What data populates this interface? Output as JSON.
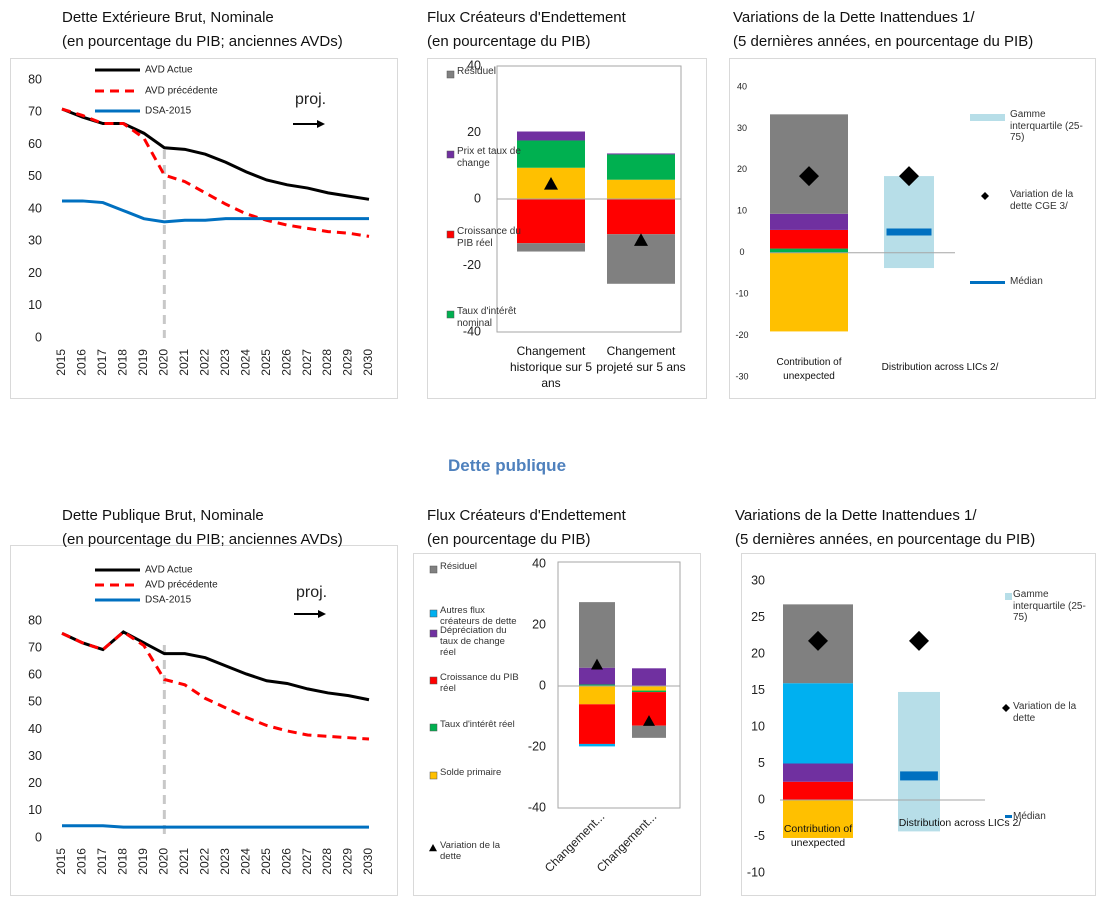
{
  "section_title": "Dette publique",
  "chart_data": [
    {
      "type": "line",
      "title": "Dette Extérieure Brut, Nominale",
      "subtitle": "(en pourcentage du PIB; anciennes AVDs)",
      "categories": [
        "2015",
        "2016",
        "2017",
        "2018",
        "2019",
        "2020",
        "2021",
        "2022",
        "2023",
        "2024",
        "2025",
        "2026",
        "2027",
        "2028",
        "2029",
        "2030"
      ],
      "ylim": [
        0,
        80
      ],
      "yticks": [
        0,
        10,
        20,
        30,
        40,
        50,
        60,
        70,
        80
      ],
      "annotation": "proj.",
      "series": [
        {
          "name": "AVD Actue",
          "color": "#000000",
          "values": [
            71,
            68.5,
            66.5,
            66.5,
            63.5,
            59,
            58.5,
            57,
            54.5,
            51.5,
            49,
            47.5,
            46.5,
            45,
            44,
            43
          ]
        },
        {
          "name": "AVD précédente",
          "color": "#ff0000",
          "dashed": true,
          "values": [
            71,
            69,
            66.5,
            66.5,
            62,
            50.5,
            48.5,
            45,
            41.5,
            38.5,
            36.5,
            35,
            34,
            33,
            32.5,
            31.5
          ]
        },
        {
          "name": "DSA-2015",
          "color": "#0070c0",
          "values": [
            42.5,
            42.5,
            42,
            39.5,
            37,
            36,
            36.5,
            36.5,
            37,
            37,
            37,
            37,
            37,
            37,
            37,
            37
          ]
        }
      ]
    },
    {
      "type": "bar",
      "stacked": true,
      "title": "Flux Créateurs d'Endettement",
      "subtitle": "(en pourcentage du PIB)",
      "categories": [
        "Changement historique sur 5 ans",
        "Changement projeté sur 5 ans"
      ],
      "ylim": [
        -40,
        40
      ],
      "yticks": [
        -40,
        -20,
        0,
        20,
        40
      ],
      "series": [
        {
          "color": "#ffc000",
          "values": [
            9.4,
            5.8
          ]
        },
        {
          "name": "Taux d'intérêt nominal",
          "color": "#00b050",
          "values": [
            8.2,
            7.6
          ]
        },
        {
          "name": "Prix et taux de change",
          "color": "#7030a0",
          "values": [
            2.7,
            0.3
          ]
        },
        {
          "name": "Croissance du PIB réel",
          "color": "#ff0000",
          "values": [
            -13.3,
            -10.6
          ]
        },
        {
          "name": "Résiduel",
          "color": "#808080",
          "values": [
            -2.5,
            -14.9
          ]
        }
      ],
      "markers": {
        "shape": "triangle",
        "color": "#000000",
        "values": [
          4.5,
          -12.4
        ]
      }
    },
    {
      "type": "bar",
      "stacked": true,
      "title": "Variations de la Dette Inattendues 1/",
      "subtitle": "(5 dernières années, en pourcentage du PIB)",
      "categories": [
        "Contribution of unexpected",
        "Distribution across LICs 2/"
      ],
      "ylim": [
        -30,
        40
      ],
      "yticks": [
        -30,
        -20,
        -10,
        0,
        10,
        20,
        30,
        40
      ],
      "series": [
        {
          "color": "#00b050",
          "values": [
            1,
            null
          ]
        },
        {
          "color": "#ff0000",
          "values": [
            4.5,
            null
          ]
        },
        {
          "color": "#7030a0",
          "values": [
            3.9,
            null
          ]
        },
        {
          "color": "#808080",
          "values": [
            24,
            null
          ]
        },
        {
          "color": "#ffc000",
          "values": [
            -19,
            null
          ]
        }
      ],
      "range": {
        "name": "Gamme interquartile (25-75)",
        "color": "#b7dee8",
        "low": [
          null,
          -3.7
        ],
        "high": [
          null,
          18.5
        ]
      },
      "median": {
        "name": "Médian",
        "color": "#0070c0",
        "values": [
          null,
          5
        ]
      },
      "markers": {
        "name": "Variation de la dette CGE 3/",
        "shape": "diamond",
        "color": "#000000",
        "values": [
          18.5,
          18.5
        ]
      }
    },
    {
      "type": "line",
      "title": "Dette Publique Brut, Nominale",
      "subtitle": "(en pourcentage du PIB; anciennes AVDs)",
      "categories": [
        "2015",
        "2016",
        "2017",
        "2018",
        "2019",
        "2020",
        "2021",
        "2022",
        "2023",
        "2024",
        "2025",
        "2026",
        "2027",
        "2028",
        "2029",
        "2030"
      ],
      "ylim": [
        0,
        90
      ],
      "yticks": [
        0,
        10,
        20,
        30,
        40,
        50,
        60,
        70,
        80
      ],
      "annotation": "proj.",
      "series": [
        {
          "name": "AVD Actue",
          "color": "#000000",
          "values": [
            75.5,
            72,
            69.5,
            76,
            72,
            68,
            68,
            66.5,
            63.5,
            60.5,
            58,
            57,
            55,
            53.5,
            52.5,
            51
          ]
        },
        {
          "name": "AVD précédente",
          "color": "#ff0000",
          "dashed": true,
          "values": [
            75.5,
            72,
            69.5,
            76,
            71,
            58.5,
            56.5,
            51.5,
            48,
            44.5,
            41.5,
            39.5,
            38,
            37.5,
            37,
            36.5
          ]
        },
        {
          "name": "DSA-2015",
          "color": "#0070c0",
          "values": [
            4.5,
            4.5,
            4.5,
            4,
            4,
            4,
            4,
            4,
            4,
            4,
            4,
            4,
            4,
            4,
            4,
            4
          ]
        }
      ]
    },
    {
      "type": "bar",
      "stacked": true,
      "title": "Flux Créateurs d'Endettement",
      "subtitle": "(en pourcentage du PIB)",
      "categories": [
        "Changement...",
        "Changement..."
      ],
      "ylim": [
        -40,
        40
      ],
      "yticks": [
        -40,
        -20,
        0,
        20,
        40
      ],
      "series": [
        {
          "name": "Solde primaire",
          "color": "#ffc000",
          "values": [
            -6,
            -1.5
          ]
        },
        {
          "name": "Taux d'intérêt réel",
          "color": "#00b050",
          "values": [
            0.5,
            -0.5
          ]
        },
        {
          "name": "Dépréciation du taux de change réel",
          "color": "#7030a0",
          "values": [
            5.5,
            5.8
          ]
        },
        {
          "name": "Croissance du PIB réel",
          "color": "#ff0000",
          "values": [
            -13,
            -11
          ]
        },
        {
          "name": "Autres flux créateurs de dette",
          "color": "#00b0f0",
          "values": [
            -0.8,
            0
          ]
        },
        {
          "name": "Résiduel",
          "color": "#808080",
          "values": [
            21.5,
            -4
          ]
        }
      ],
      "markers": {
        "name": "Variation de la dette",
        "shape": "triangle",
        "color": "#000000",
        "values": [
          7,
          -11.5
        ]
      }
    },
    {
      "type": "bar",
      "stacked": true,
      "title": "Variations de la Dette Inattendues 1/",
      "subtitle": "(5 dernières années, en pourcentage du PIB)",
      "categories": [
        "Contribution of unexpected",
        "Distribution across LICs 2/"
      ],
      "ylim": [
        -10,
        30
      ],
      "yticks": [
        -10,
        -5,
        0,
        5,
        10,
        15,
        20,
        25,
        30
      ],
      "series": [
        {
          "color": "#ff0000",
          "values": [
            2.5,
            null
          ]
        },
        {
          "color": "#7030a0",
          "values": [
            2.5,
            null
          ]
        },
        {
          "color": "#00b0f0",
          "values": [
            11,
            null
          ]
        },
        {
          "color": "#808080",
          "values": [
            10.8,
            null
          ]
        },
        {
          "color": "#ffc000",
          "values": [
            -5.2,
            null
          ]
        }
      ],
      "range": {
        "name": "Gamme interquartile (25-75)",
        "color": "#b7dee8",
        "low": [
          null,
          -4.3
        ],
        "high": [
          null,
          14.8
        ]
      },
      "median": {
        "name": "Médian",
        "color": "#0070c0",
        "values": [
          null,
          3.3
        ]
      },
      "markers": {
        "name": "Variation de la dette",
        "shape": "diamond",
        "color": "#000000",
        "values": [
          21.8,
          21.8
        ]
      }
    }
  ]
}
